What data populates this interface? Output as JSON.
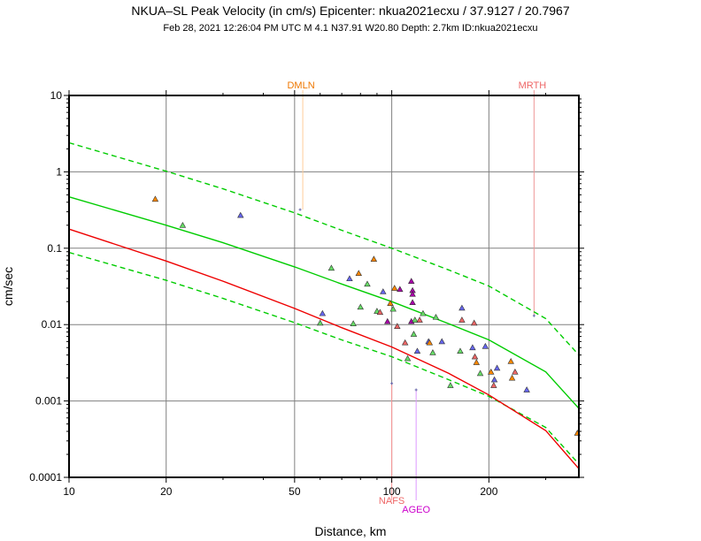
{
  "chart_data": {
    "type": "scatter",
    "title": "NKUA–SL Peak Velocity (in cm/s) Epicenter: nkua2021ecxu / 37.9127 / 20.7967",
    "subtitle": "Feb 28, 2021 12:26:04 PM UTC    M 4.1    N37.91 W20.80   Depth: 2.7km   ID:nkua2021ecxu",
    "xlabel": "Distance, km",
    "ylabel": "cm/sec",
    "x_scale": "log",
    "y_scale": "log",
    "xlim": [
      10,
      380
    ],
    "ylim": [
      0.0001,
      10
    ],
    "x_ticks": [
      {
        "value": 10,
        "label": "10"
      },
      {
        "value": 20,
        "label": "20"
      },
      {
        "value": 50,
        "label": "50"
      },
      {
        "value": 100,
        "label": "100"
      },
      {
        "value": 200,
        "label": "200"
      }
    ],
    "y_ticks": [
      {
        "value": 0.0001,
        "label": "0.0001"
      },
      {
        "value": 0.001,
        "label": "0.001"
      },
      {
        "value": 0.01,
        "label": "0.01"
      },
      {
        "value": 0.1,
        "label": "0.1"
      },
      {
        "value": 1,
        "label": "1"
      },
      {
        "value": 10,
        "label": "10"
      }
    ],
    "grid": true,
    "curves": [
      {
        "kind": "median-green",
        "color": "#00cc00",
        "dash": false,
        "points": [
          [
            10,
            0.47
          ],
          [
            20,
            0.2
          ],
          [
            30,
            0.118
          ],
          [
            50,
            0.057
          ],
          [
            70,
            0.034
          ],
          [
            100,
            0.02
          ],
          [
            150,
            0.0103
          ],
          [
            200,
            0.0063
          ],
          [
            300,
            0.0024
          ],
          [
            380,
            0.0008
          ]
        ]
      },
      {
        "kind": "upper-green",
        "color": "#00cc00",
        "dash": true,
        "points": [
          [
            10,
            2.4
          ],
          [
            20,
            1.02
          ],
          [
            30,
            0.6
          ],
          [
            50,
            0.29
          ],
          [
            70,
            0.172
          ],
          [
            100,
            0.1
          ],
          [
            150,
            0.052
          ],
          [
            200,
            0.032
          ],
          [
            300,
            0.012
          ],
          [
            380,
            0.004
          ]
        ]
      },
      {
        "kind": "lower-green",
        "color": "#00cc00",
        "dash": true,
        "points": [
          [
            10,
            0.088
          ],
          [
            20,
            0.038
          ],
          [
            30,
            0.022
          ],
          [
            50,
            0.0106
          ],
          [
            70,
            0.0063
          ],
          [
            100,
            0.0038
          ],
          [
            150,
            0.0019
          ],
          [
            200,
            0.00115
          ],
          [
            300,
            0.00045
          ],
          [
            380,
            0.00015
          ]
        ]
      },
      {
        "kind": "median-red",
        "color": "#ee0000",
        "dash": false,
        "points": [
          [
            10,
            0.178
          ],
          [
            20,
            0.068
          ],
          [
            30,
            0.037
          ],
          [
            50,
            0.0163
          ],
          [
            70,
            0.0091
          ],
          [
            100,
            0.0051
          ],
          [
            150,
            0.0023
          ],
          [
            200,
            0.0012
          ],
          [
            300,
            0.00041
          ],
          [
            380,
            0.00013
          ]
        ]
      }
    ],
    "points": [
      {
        "x": 18.5,
        "y": 0.44,
        "color": "#ff8800"
      },
      {
        "x": 22.5,
        "y": 0.2,
        "color": "#66dd66"
      },
      {
        "x": 34,
        "y": 0.27,
        "color": "#6666ee"
      },
      {
        "x": 60,
        "y": 0.0105,
        "color": "#66dd66"
      },
      {
        "x": 61,
        "y": 0.014,
        "color": "#6666ee"
      },
      {
        "x": 65,
        "y": 0.055,
        "color": "#66dd66"
      },
      {
        "x": 74,
        "y": 0.04,
        "color": "#6666ee"
      },
      {
        "x": 76,
        "y": 0.0103,
        "color": "#66dd66"
      },
      {
        "x": 79,
        "y": 0.047,
        "color": "#ff8800"
      },
      {
        "x": 80,
        "y": 0.017,
        "color": "#66dd66"
      },
      {
        "x": 84,
        "y": 0.034,
        "color": "#66dd66"
      },
      {
        "x": 88,
        "y": 0.072,
        "color": "#ff8800"
      },
      {
        "x": 90,
        "y": 0.015,
        "color": "#66dd66"
      },
      {
        "x": 92,
        "y": 0.0145,
        "color": "#ee6666"
      },
      {
        "x": 94,
        "y": 0.027,
        "color": "#6666ee"
      },
      {
        "x": 97,
        "y": 0.011,
        "color": "#aa00aa"
      },
      {
        "x": 99,
        "y": 0.019,
        "color": "#ff8800"
      },
      {
        "x": 101,
        "y": 0.016,
        "color": "#66dd66"
      },
      {
        "x": 102,
        "y": 0.03,
        "color": "#ff8800"
      },
      {
        "x": 104,
        "y": 0.0095,
        "color": "#ee6666"
      },
      {
        "x": 106,
        "y": 0.029,
        "color": "#aa00aa"
      },
      {
        "x": 110,
        "y": 0.0058,
        "color": "#ee6666"
      },
      {
        "x": 112,
        "y": 0.0036,
        "color": "#66dd66"
      },
      {
        "x": 115,
        "y": 0.037,
        "color": "#aa00aa"
      },
      {
        "x": 116,
        "y": 0.028,
        "color": "#aa00aa"
      },
      {
        "x": 116,
        "y": 0.025,
        "color": "#aa00aa"
      },
      {
        "x": 116,
        "y": 0.0195,
        "color": "#aa00aa"
      },
      {
        "x": 115,
        "y": 0.011,
        "color": "#aa00aa"
      },
      {
        "x": 117,
        "y": 0.0075,
        "color": "#66dd66"
      },
      {
        "x": 118,
        "y": 0.0115,
        "color": "#66dd66"
      },
      {
        "x": 120,
        "y": 0.0045,
        "color": "#6666ee"
      },
      {
        "x": 122,
        "y": 0.0115,
        "color": "#ee6666"
      },
      {
        "x": 125,
        "y": 0.014,
        "color": "#66dd66"
      },
      {
        "x": 130,
        "y": 0.006,
        "color": "#6666ee"
      },
      {
        "x": 131,
        "y": 0.0058,
        "color": "#ff8800"
      },
      {
        "x": 134,
        "y": 0.0043,
        "color": "#66dd66"
      },
      {
        "x": 137,
        "y": 0.0125,
        "color": "#66dd66"
      },
      {
        "x": 143,
        "y": 0.006,
        "color": "#6666ee"
      },
      {
        "x": 152,
        "y": 0.0016,
        "color": "#66dd66"
      },
      {
        "x": 163,
        "y": 0.0045,
        "color": "#66dd66"
      },
      {
        "x": 165,
        "y": 0.0165,
        "color": "#6666ee"
      },
      {
        "x": 165,
        "y": 0.0115,
        "color": "#ee6666"
      },
      {
        "x": 178,
        "y": 0.005,
        "color": "#6666ee"
      },
      {
        "x": 180,
        "y": 0.0105,
        "color": "#ee6666"
      },
      {
        "x": 181,
        "y": 0.0038,
        "color": "#ee6666"
      },
      {
        "x": 183,
        "y": 0.0032,
        "color": "#ff8800"
      },
      {
        "x": 188,
        "y": 0.0023,
        "color": "#66dd66"
      },
      {
        "x": 195,
        "y": 0.0052,
        "color": "#6666ee"
      },
      {
        "x": 203,
        "y": 0.0024,
        "color": "#ff8800"
      },
      {
        "x": 207,
        "y": 0.0016,
        "color": "#ee6666"
      },
      {
        "x": 208,
        "y": 0.0019,
        "color": "#6666ee"
      },
      {
        "x": 212,
        "y": 0.0027,
        "color": "#6666ee"
      },
      {
        "x": 234,
        "y": 0.0033,
        "color": "#ff8800"
      },
      {
        "x": 236,
        "y": 0.002,
        "color": "#ff8800"
      },
      {
        "x": 241,
        "y": 0.0024,
        "color": "#ee6666"
      },
      {
        "x": 262,
        "y": 0.0014,
        "color": "#6666ee"
      },
      {
        "x": 376,
        "y": 0.00038,
        "color": "#ff8800"
      }
    ],
    "markers": [
      {
        "x": 52,
        "y": 0.32,
        "color": "#6666aa"
      },
      {
        "x": 100,
        "y": 0.0017,
        "color": "#6666aa"
      },
      {
        "x": 119,
        "y": 0.0014,
        "color": "#6666aa"
      },
      {
        "x": 276,
        "y": 0.0131,
        "color": "#6666aa"
      }
    ],
    "stations": [
      {
        "label": "DMLN",
        "x": 53,
        "y": 0.32,
        "position": "top",
        "color": "#ee7700",
        "line_color": "#ffcc99"
      },
      {
        "label": "MRTH",
        "x": 276,
        "y": 0.0131,
        "position": "top",
        "color": "#ee6666",
        "line_color": "#ee9999"
      },
      {
        "label": "NAFS",
        "x": 100,
        "y": 0.0017,
        "position": "bottom",
        "color": "#ee6666",
        "line_color": "#ff9999"
      },
      {
        "label": "AGEO",
        "x": 119,
        "y": 0.0014,
        "position": "bottom",
        "color": "#cc00cc",
        "line_color": "#dd99ff"
      }
    ]
  }
}
